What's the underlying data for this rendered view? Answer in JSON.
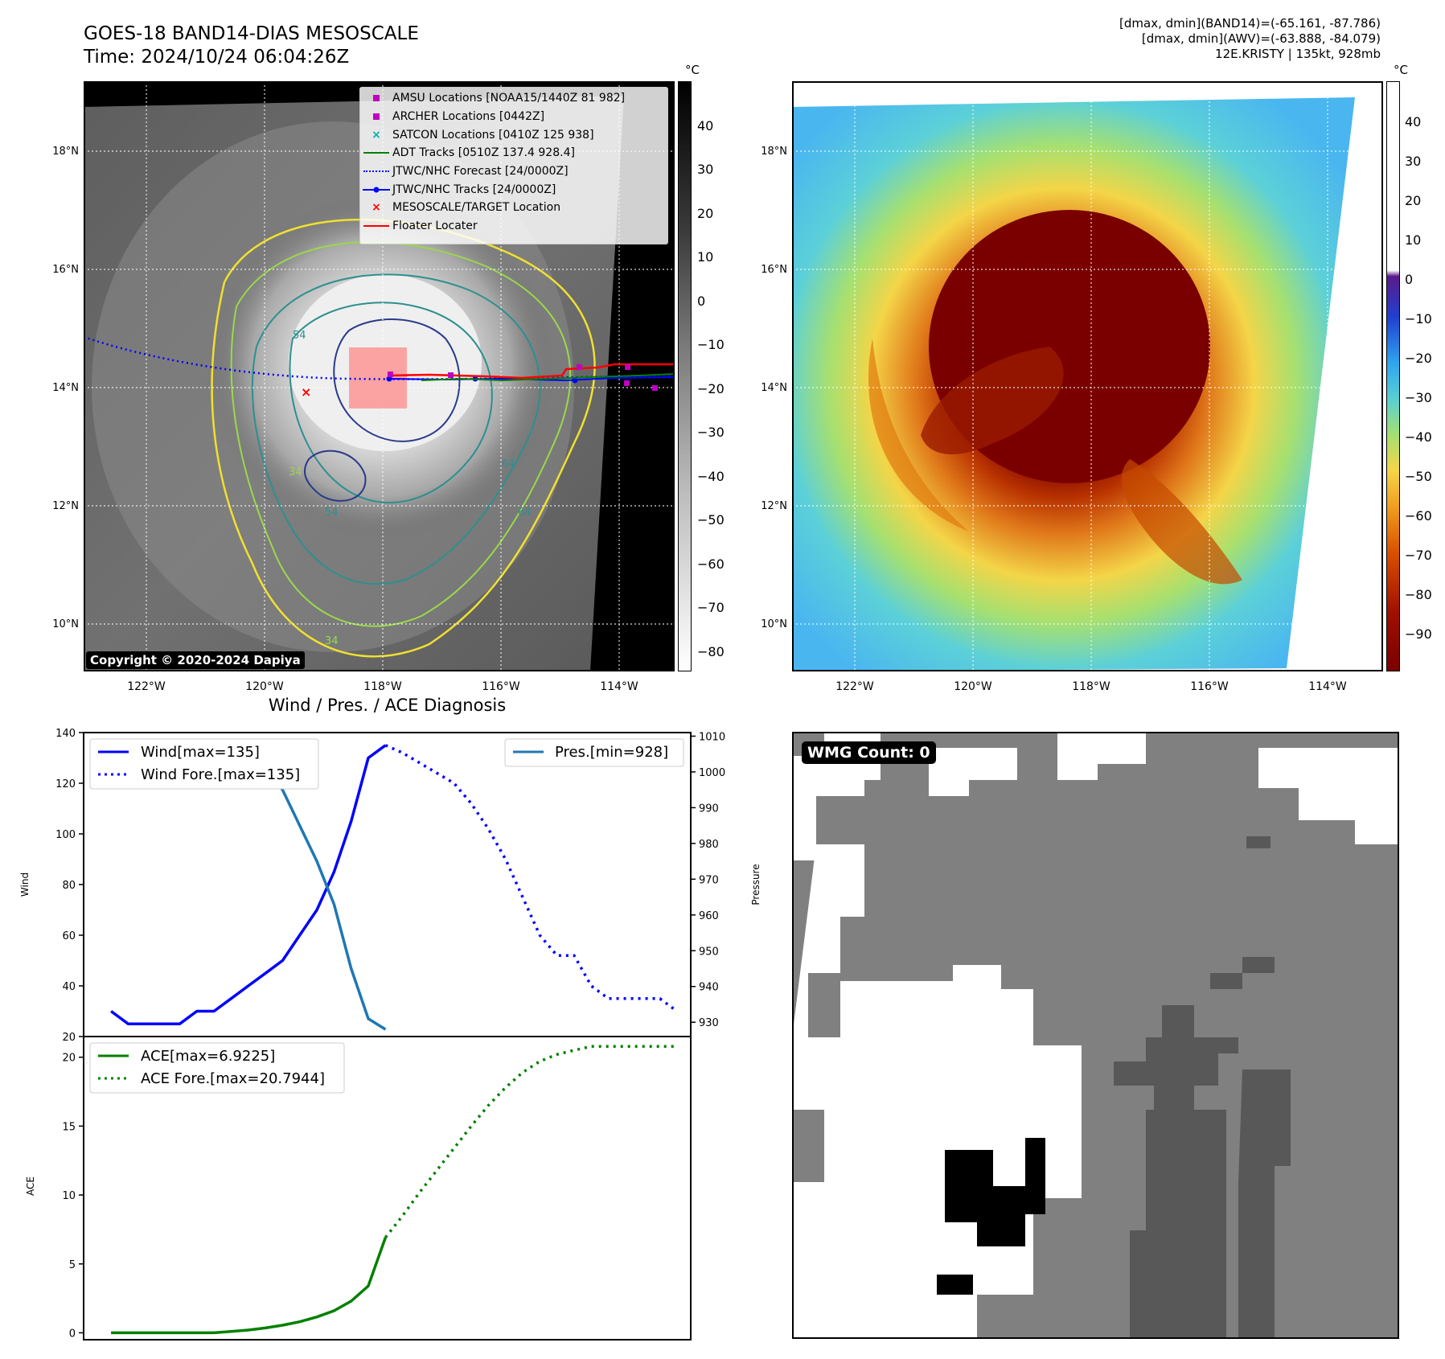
{
  "header": {
    "title_line1": "GOES-18 BAND14-DIAS MESOSCALE",
    "title_line2": "Time: 2024/10/24 06:04:26Z",
    "stats_line1": "[dmax, dmin](BAND14)=(-65.161, -87.786)",
    "stats_line2": "[dmax, dmin](AWV)=(-63.888, -84.079)",
    "stats_line3": "12E.KRISTY | 135kt, 928mb"
  },
  "map": {
    "lon_ticks": [
      "122°W",
      "120°W",
      "118°W",
      "116°W",
      "114°W"
    ],
    "lat_ticks": [
      "18°N",
      "16°N",
      "14°N",
      "12°N",
      "10°N"
    ],
    "copyright": "Copyright © 2020-2024 Dapiya",
    "contour_labels": [
      "54",
      "64",
      "34",
      "54",
      "64",
      "34"
    ]
  },
  "colorbar_gray": {
    "unit": "°C",
    "ticks": [
      "40",
      "30",
      "20",
      "10",
      "0",
      "−10",
      "−20",
      "−30",
      "−40",
      "−50",
      "−60",
      "−70",
      "−80"
    ]
  },
  "colorbar_color": {
    "unit": "°C",
    "ticks": [
      "40",
      "30",
      "20",
      "10",
      "0",
      "−10",
      "−20",
      "−30",
      "−40",
      "−50",
      "−60",
      "−70",
      "−80",
      "−90"
    ]
  },
  "legend": {
    "items": [
      {
        "label": "AMSU Locations [NOAA15/1440Z 81 982]",
        "color": "#c000c0",
        "symbol": "square"
      },
      {
        "label": "ARCHER Locations [0442Z]",
        "color": "#c000c0",
        "symbol": "square"
      },
      {
        "label": "SATCON Locations [0410Z 125 938]",
        "color": "#00b0b0",
        "symbol": "x"
      },
      {
        "label": "ADT Tracks [0510Z 137.4 928.4]",
        "color": "#008000",
        "symbol": "line"
      },
      {
        "label": "JTWC/NHC Forecast [24/0000Z]",
        "color": "#0000ff",
        "symbol": "dotted"
      },
      {
        "label": "JTWC/NHC Tracks [24/0000Z]",
        "color": "#0000ff",
        "symbol": "line-dot"
      },
      {
        "label": "MESOSCALE/TARGET Location",
        "color": "#ff0000",
        "symbol": "x"
      },
      {
        "label": "Floater Locater",
        "color": "#ff0000",
        "symbol": "line"
      }
    ]
  },
  "diag": {
    "title": "Wind / Pres. / ACE Diagnosis",
    "ylabel_wind": "Wind",
    "ylabel_pres": "Pressure",
    "ylabel_ace": "ACE",
    "legend_wind": "Wind[max=135]",
    "legend_wind_fore": "Wind Fore.[max=135]",
    "legend_pres": "Pres.[min=928]",
    "legend_ace": "ACE[max=6.9225]",
    "legend_ace_fore": "ACE Fore.[max=20.7944]",
    "wind_ticks": [
      "140",
      "120",
      "100",
      "80",
      "60",
      "40",
      "20"
    ],
    "pres_ticks": [
      "1010",
      "1000",
      "990",
      "980",
      "970",
      "960",
      "950",
      "940",
      "930"
    ],
    "ace_ticks": [
      "20",
      "15",
      "10",
      "5",
      "0"
    ]
  },
  "wmg": {
    "label": "WMG Count: 0"
  },
  "chart_data": [
    {
      "type": "line",
      "title": "Wind / Pres. / ACE Diagnosis",
      "ylabel": "Wind",
      "ylim": [
        20,
        140
      ],
      "x": [
        0,
        1,
        2,
        3,
        4,
        5,
        6,
        7,
        8,
        9,
        10,
        11,
        12,
        13,
        14,
        15,
        16,
        17,
        18,
        19,
        20,
        21,
        22,
        23,
        24,
        25,
        26,
        27,
        28,
        29,
        30,
        31,
        32,
        33
      ],
      "series": [
        {
          "name": "Wind[max=135]",
          "color": "#0000ff",
          "style": "solid",
          "x": [
            0,
            1,
            2,
            3,
            4,
            5,
            6,
            7,
            8,
            9,
            10,
            11,
            12,
            13,
            14,
            15,
            16
          ],
          "values": [
            30,
            25,
            25,
            25,
            25,
            30,
            30,
            35,
            40,
            45,
            50,
            60,
            70,
            85,
            105,
            130,
            135
          ]
        },
        {
          "name": "Wind Fore.[max=135]",
          "color": "#0000ff",
          "style": "dotted",
          "x": [
            16,
            17,
            18,
            19,
            20,
            21,
            22,
            23,
            24,
            25,
            26,
            27,
            28,
            29,
            30,
            31,
            32,
            33
          ],
          "values": [
            135,
            132,
            128,
            124,
            120,
            112,
            102,
            90,
            75,
            60,
            52,
            52,
            40,
            35,
            35,
            35,
            35,
            30
          ]
        }
      ]
    },
    {
      "type": "line",
      "ylabel": "Pressure",
      "ylim": [
        926,
        1011
      ],
      "series": [
        {
          "name": "Pres.[min=928]",
          "color": "#1f77b4",
          "style": "solid",
          "x": [
            0,
            1,
            2,
            3,
            4,
            5,
            6,
            7,
            8,
            9,
            10,
            11,
            12,
            13,
            14,
            15,
            16
          ],
          "values": [
            1006,
            1006,
            1006,
            1007,
            1007,
            1007,
            1006,
            1005,
            1003,
            1000,
            995,
            985,
            975,
            963,
            945,
            931,
            928
          ]
        }
      ]
    },
    {
      "type": "line",
      "ylabel": "ACE",
      "ylim": [
        -0.5,
        21.5
      ],
      "series": [
        {
          "name": "ACE[max=6.9225]",
          "color": "#008000",
          "style": "solid",
          "x": [
            0,
            1,
            2,
            3,
            4,
            5,
            6,
            7,
            8,
            9,
            10,
            11,
            12,
            13,
            14,
            15,
            16
          ],
          "values": [
            0,
            0,
            0,
            0,
            0,
            0,
            0,
            0.1,
            0.2,
            0.35,
            0.55,
            0.8,
            1.15,
            1.6,
            2.3,
            3.4,
            6.92
          ]
        },
        {
          "name": "ACE Fore.[max=20.7944]",
          "color": "#008000",
          "style": "dotted",
          "x": [
            16,
            17,
            18,
            19,
            20,
            21,
            22,
            23,
            24,
            25,
            26,
            27,
            28,
            29,
            30,
            31,
            32,
            33
          ],
          "values": [
            6.92,
            8.5,
            10.2,
            11.8,
            13.4,
            15.0,
            16.5,
            17.8,
            18.9,
            19.7,
            20.2,
            20.5,
            20.79,
            20.79,
            20.79,
            20.79,
            20.79,
            20.79
          ]
        }
      ]
    }
  ]
}
